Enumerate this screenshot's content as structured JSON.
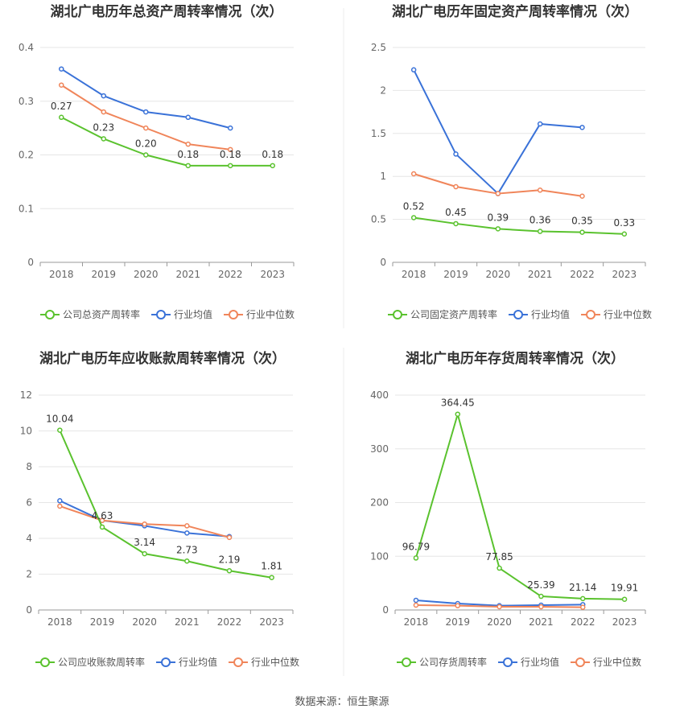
{
  "colors": {
    "company": "#5ac22e",
    "industry_avg": "#3a72d8",
    "industry_median": "#f0855a",
    "grid": "#e6e6e6",
    "axis": "#999999"
  },
  "legend": {
    "avg": "行业均值",
    "median": "行业中位数"
  },
  "source": "数据来源：恒生聚源",
  "chart_data": [
    {
      "type": "line",
      "title": "湖北广电历年总资产周转率情况（次）",
      "x": [
        "2018",
        "2019",
        "2020",
        "2021",
        "2022",
        "2023"
      ],
      "ylim": [
        0,
        0.4
      ],
      "yticks": [
        "0",
        "0.1",
        "0.2",
        "0.3",
        "0.4"
      ],
      "legend_position": "bottom",
      "grid": true,
      "series": [
        {
          "name": "公司总资产周转率",
          "values": [
            0.27,
            0.23,
            0.2,
            0.18,
            0.18,
            0.18
          ],
          "labels": [
            "0.27",
            "0.23",
            "0.20",
            "0.18",
            "0.18",
            "0.18"
          ]
        },
        {
          "name": "行业均值",
          "values": [
            0.36,
            0.31,
            0.28,
            0.27,
            0.25,
            null
          ]
        },
        {
          "name": "行业中位数",
          "values": [
            0.33,
            0.28,
            0.25,
            0.22,
            0.21,
            null
          ]
        }
      ]
    },
    {
      "type": "line",
      "title": "湖北广电历年固定资产周转率情况（次）",
      "x": [
        "2018",
        "2019",
        "2020",
        "2021",
        "2022",
        "2023"
      ],
      "ylim": [
        0,
        2.5
      ],
      "yticks": [
        "0",
        "0.5",
        "1",
        "1.5",
        "2",
        "2.5"
      ],
      "legend_position": "bottom",
      "grid": true,
      "series": [
        {
          "name": "公司固定资产周转率",
          "values": [
            0.52,
            0.45,
            0.39,
            0.36,
            0.35,
            0.33
          ],
          "labels": [
            "0.52",
            "0.45",
            "0.39",
            "0.36",
            "0.35",
            "0.33"
          ]
        },
        {
          "name": "行业均值",
          "values": [
            2.24,
            1.26,
            0.8,
            1.61,
            1.57,
            null
          ]
        },
        {
          "name": "行业中位数",
          "values": [
            1.03,
            0.88,
            0.8,
            0.84,
            0.77,
            null
          ]
        }
      ]
    },
    {
      "type": "line",
      "title": "湖北广电历年应收账款周转率情况（次）",
      "x": [
        "2018",
        "2019",
        "2020",
        "2021",
        "2022",
        "2023"
      ],
      "ylim": [
        0,
        12
      ],
      "yticks": [
        "0",
        "2",
        "4",
        "6",
        "8",
        "10",
        "12"
      ],
      "legend_position": "bottom",
      "grid": true,
      "series": [
        {
          "name": "公司应收账款周转率",
          "values": [
            10.04,
            4.63,
            3.14,
            2.73,
            2.19,
            1.81
          ],
          "labels": [
            "10.04",
            "4.63",
            "3.14",
            "2.73",
            "2.19",
            "1.81"
          ]
        },
        {
          "name": "行业均值",
          "values": [
            6.1,
            5.0,
            4.7,
            4.3,
            4.1,
            null
          ]
        },
        {
          "name": "行业中位数",
          "values": [
            5.8,
            5.0,
            4.8,
            4.7,
            4.05,
            null
          ]
        }
      ]
    },
    {
      "type": "line",
      "title": "湖北广电历年存货周转率情况（次）",
      "x": [
        "2018",
        "2019",
        "2020",
        "2021",
        "2022",
        "2023"
      ],
      "ylim": [
        0,
        400
      ],
      "yticks": [
        "0",
        "100",
        "200",
        "300",
        "400"
      ],
      "legend_position": "bottom",
      "grid": true,
      "series": [
        {
          "name": "公司存货周转率",
          "values": [
            96.79,
            364.45,
            77.85,
            25.39,
            21.14,
            19.91
          ],
          "labels": [
            "96.79",
            "364.45",
            "77.85",
            "25.39",
            "21.14",
            "19.91"
          ]
        },
        {
          "name": "行业均值",
          "values": [
            18,
            12,
            8,
            9,
            10,
            null
          ]
        },
        {
          "name": "行业中位数",
          "values": [
            9,
            8,
            6,
            6,
            5,
            null
          ]
        }
      ]
    }
  ]
}
